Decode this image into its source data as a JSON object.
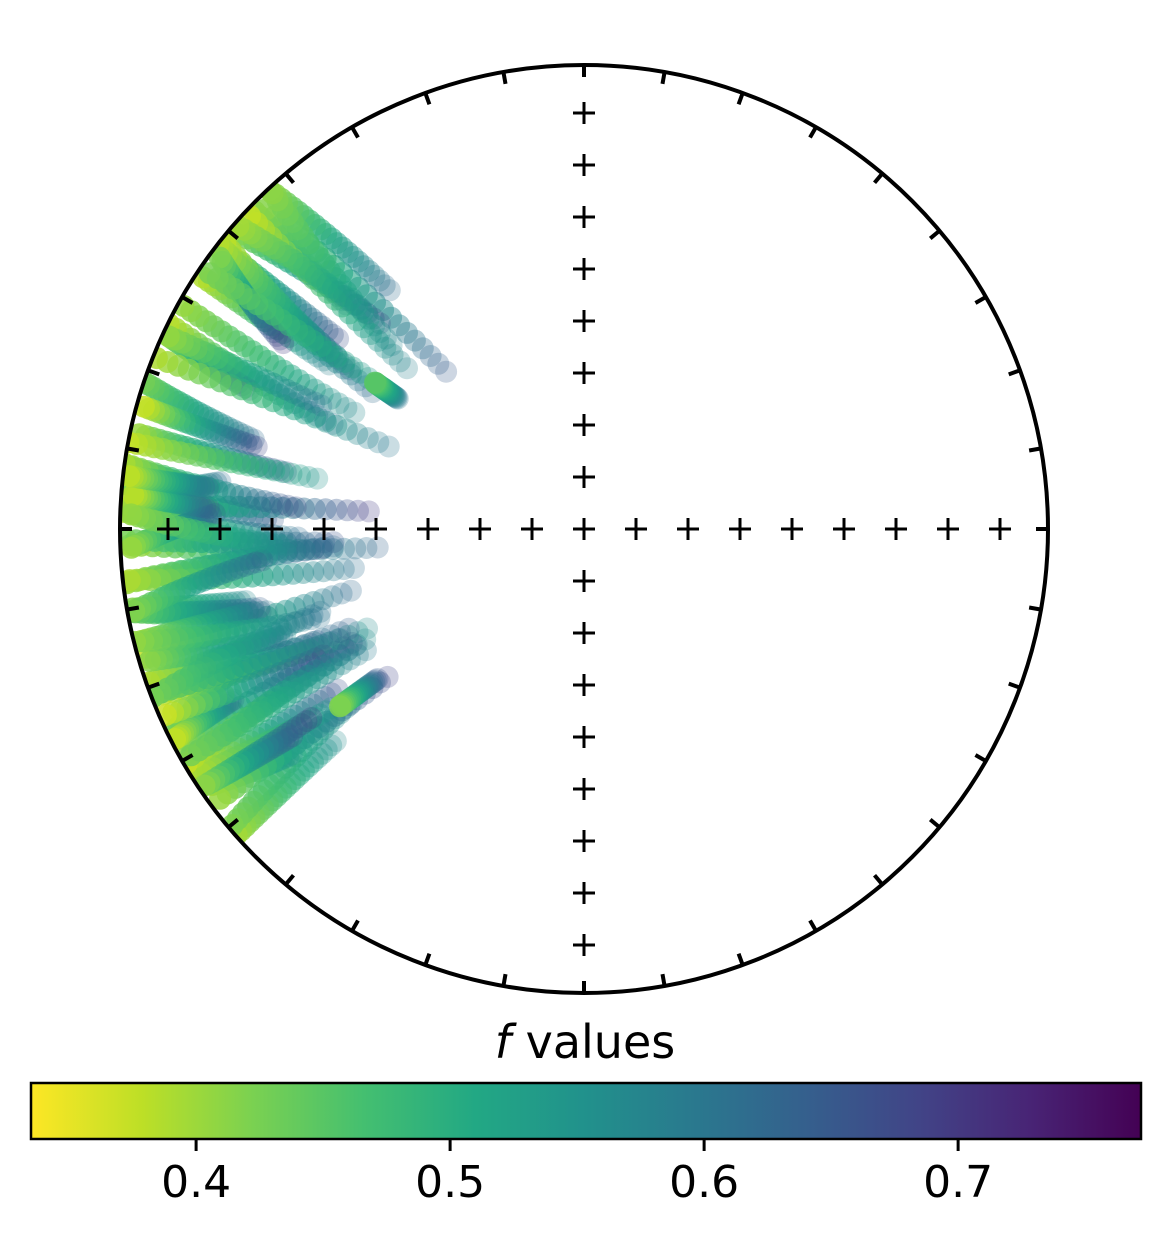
{
  "chart_data": {
    "type": "scatter",
    "projection": "equal-area stereonet (lower hemisphere)",
    "grid": "cross of '+' markers along N-S and E-W diameters",
    "colorbar": {
      "label_italic": "f",
      "label_rest": " values",
      "colormap": "viridis (reversed)",
      "range": [
        0.335,
        0.772
      ],
      "ticks": [
        "0.4",
        "0.5",
        "0.6",
        "0.7"
      ],
      "tick_values": [
        0.4,
        0.5,
        0.6,
        0.7
      ],
      "orientation": "horizontal",
      "placement": "below"
    },
    "series": [
      {
        "streaks": [
          {
            "start": [
              262,
              0.05
            ],
            "end": [
              258,
              0.09
            ],
            "f_start": 0.4,
            "f_end": 0.62
          },
          {
            "start": [
              269,
              0.03
            ],
            "end": [
              267,
              0.06
            ],
            "f_start": 0.41,
            "f_end": 0.65
          }
        ],
        "description": "points clustered near the west margin, each sample trailing toward the center with increasing f"
      }
    ]
  }
}
